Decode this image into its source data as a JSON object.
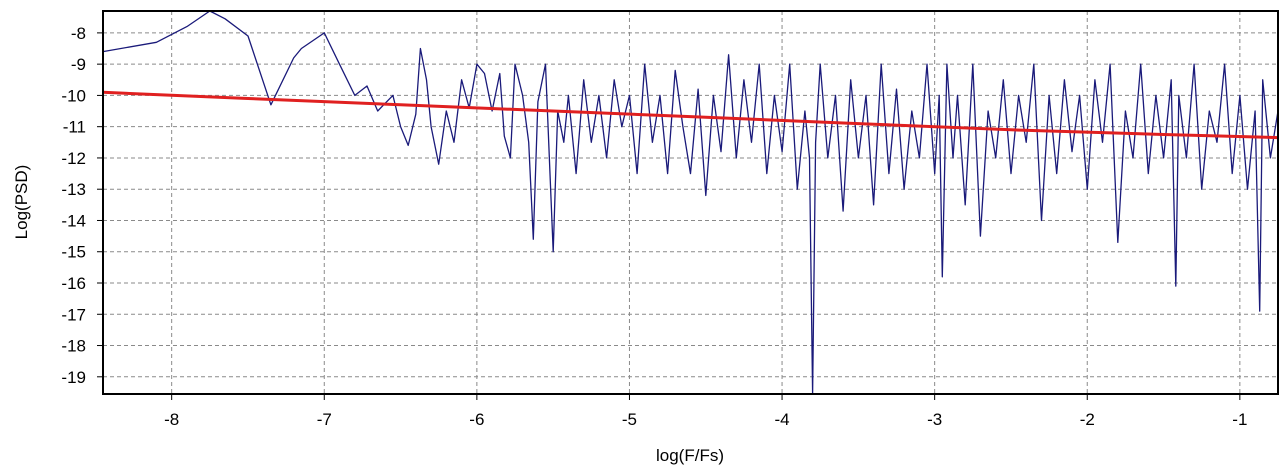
{
  "chart_data": {
    "type": "line",
    "title": "",
    "xlabel": "log(F/Fs)",
    "ylabel": "Log(PSD)",
    "xlim": [
      -8.45,
      -0.75
    ],
    "ylim": [
      -19.55,
      -7.3
    ],
    "xticks": [
      -8,
      -7,
      -6,
      -5,
      -4,
      -3,
      -2,
      -1
    ],
    "yticks": [
      -8,
      -9,
      -10,
      -11,
      -12,
      -13,
      -14,
      -15,
      -16,
      -17,
      -18,
      -19
    ],
    "grid": true,
    "legend": "none",
    "series": [
      {
        "color": "#1a1a7a",
        "points": [
          [
            -8.45,
            -8.6
          ],
          [
            -8.1,
            -8.3
          ],
          [
            -7.9,
            -7.8
          ],
          [
            -7.75,
            -7.3
          ],
          [
            -7.65,
            -7.55
          ],
          [
            -7.5,
            -8.1
          ],
          [
            -7.35,
            -10.3
          ],
          [
            -7.2,
            -8.8
          ],
          [
            -7.15,
            -8.5
          ],
          [
            -7.0,
            -8.0
          ],
          [
            -6.9,
            -9.0
          ],
          [
            -6.8,
            -10.0
          ],
          [
            -6.72,
            -9.7
          ],
          [
            -6.65,
            -10.5
          ],
          [
            -6.55,
            -10.0
          ],
          [
            -6.5,
            -11.0
          ],
          [
            -6.45,
            -11.6
          ],
          [
            -6.4,
            -10.6
          ],
          [
            -6.37,
            -8.5
          ],
          [
            -6.33,
            -9.5
          ],
          [
            -6.3,
            -11.0
          ],
          [
            -6.25,
            -12.2
          ],
          [
            -6.2,
            -10.5
          ],
          [
            -6.15,
            -11.5
          ],
          [
            -6.1,
            -9.5
          ],
          [
            -6.05,
            -10.4
          ],
          [
            -6.0,
            -9.0
          ],
          [
            -5.95,
            -9.3
          ],
          [
            -5.9,
            -10.5
          ],
          [
            -5.85,
            -9.3
          ],
          [
            -5.82,
            -11.3
          ],
          [
            -5.78,
            -12.0
          ],
          [
            -5.75,
            -9.0
          ],
          [
            -5.7,
            -10.0
          ],
          [
            -5.66,
            -11.5
          ],
          [
            -5.63,
            -14.6
          ],
          [
            -5.6,
            -10.2
          ],
          [
            -5.55,
            -9.0
          ],
          [
            -5.5,
            -15.0
          ],
          [
            -5.47,
            -10.5
          ],
          [
            -5.43,
            -11.5
          ],
          [
            -5.4,
            -10.0
          ],
          [
            -5.35,
            -12.5
          ],
          [
            -5.3,
            -9.5
          ],
          [
            -5.25,
            -11.5
          ],
          [
            -5.2,
            -10.0
          ],
          [
            -5.15,
            -12.0
          ],
          [
            -5.1,
            -9.5
          ],
          [
            -5.05,
            -11.0
          ],
          [
            -5.0,
            -10.0
          ],
          [
            -4.95,
            -12.5
          ],
          [
            -4.9,
            -9.0
          ],
          [
            -4.85,
            -11.5
          ],
          [
            -4.8,
            -10.0
          ],
          [
            -4.75,
            -12.5
          ],
          [
            -4.7,
            -9.2
          ],
          [
            -4.65,
            -11.0
          ],
          [
            -4.6,
            -12.5
          ],
          [
            -4.55,
            -9.8
          ],
          [
            -4.5,
            -13.2
          ],
          [
            -4.45,
            -10.0
          ],
          [
            -4.4,
            -11.8
          ],
          [
            -4.35,
            -8.7
          ],
          [
            -4.3,
            -12.0
          ],
          [
            -4.25,
            -9.5
          ],
          [
            -4.2,
            -11.5
          ],
          [
            -4.15,
            -9.0
          ],
          [
            -4.1,
            -12.5
          ],
          [
            -4.05,
            -10.0
          ],
          [
            -4.0,
            -11.8
          ],
          [
            -3.95,
            -9.0
          ],
          [
            -3.9,
            -13.0
          ],
          [
            -3.85,
            -10.5
          ],
          [
            -3.82,
            -12.0
          ],
          [
            -3.8,
            -19.55
          ],
          [
            -3.78,
            -11.5
          ],
          [
            -3.75,
            -9.0
          ],
          [
            -3.7,
            -12.0
          ],
          [
            -3.65,
            -10.0
          ],
          [
            -3.6,
            -13.7
          ],
          [
            -3.55,
            -9.5
          ],
          [
            -3.5,
            -12.0
          ],
          [
            -3.45,
            -10.0
          ],
          [
            -3.4,
            -13.5
          ],
          [
            -3.35,
            -9.0
          ],
          [
            -3.3,
            -12.5
          ],
          [
            -3.25,
            -9.8
          ],
          [
            -3.2,
            -13.0
          ],
          [
            -3.15,
            -10.5
          ],
          [
            -3.1,
            -12.0
          ],
          [
            -3.05,
            -9.0
          ],
          [
            -3.0,
            -12.5
          ],
          [
            -2.97,
            -10.0
          ],
          [
            -2.95,
            -15.8
          ],
          [
            -2.92,
            -9.0
          ],
          [
            -2.88,
            -12.0
          ],
          [
            -2.85,
            -10.0
          ],
          [
            -2.8,
            -13.5
          ],
          [
            -2.75,
            -9.0
          ],
          [
            -2.7,
            -14.5
          ],
          [
            -2.65,
            -10.5
          ],
          [
            -2.6,
            -12.0
          ],
          [
            -2.55,
            -9.5
          ],
          [
            -2.5,
            -12.5
          ],
          [
            -2.45,
            -10.0
          ],
          [
            -2.4,
            -11.5
          ],
          [
            -2.35,
            -9.0
          ],
          [
            -2.3,
            -14.0
          ],
          [
            -2.25,
            -10.0
          ],
          [
            -2.2,
            -12.5
          ],
          [
            -2.15,
            -9.5
          ],
          [
            -2.1,
            -11.8
          ],
          [
            -2.05,
            -10.0
          ],
          [
            -2.0,
            -13.0
          ],
          [
            -1.95,
            -9.5
          ],
          [
            -1.9,
            -11.5
          ],
          [
            -1.85,
            -9.0
          ],
          [
            -1.8,
            -14.7
          ],
          [
            -1.75,
            -10.5
          ],
          [
            -1.7,
            -12.0
          ],
          [
            -1.65,
            -9.0
          ],
          [
            -1.6,
            -12.5
          ],
          [
            -1.55,
            -10.0
          ],
          [
            -1.5,
            -12.0
          ],
          [
            -1.45,
            -9.5
          ],
          [
            -1.42,
            -16.1
          ],
          [
            -1.4,
            -10.0
          ],
          [
            -1.35,
            -12.0
          ],
          [
            -1.3,
            -9.0
          ],
          [
            -1.25,
            -13.0
          ],
          [
            -1.2,
            -10.5
          ],
          [
            -1.15,
            -11.5
          ],
          [
            -1.1,
            -9.0
          ],
          [
            -1.05,
            -12.5
          ],
          [
            -1.0,
            -10.0
          ],
          [
            -0.95,
            -13.0
          ],
          [
            -0.9,
            -10.5
          ],
          [
            -0.87,
            -16.9
          ],
          [
            -0.85,
            -9.5
          ],
          [
            -0.8,
            -12.0
          ],
          [
            -0.75,
            -10.5
          ]
        ]
      },
      {
        "color": "#e02020",
        "points": [
          [
            -8.45,
            -9.9
          ],
          [
            -7.5,
            -10.1
          ],
          [
            -6.5,
            -10.3
          ],
          [
            -5.5,
            -10.5
          ],
          [
            -4.5,
            -10.7
          ],
          [
            -3.5,
            -10.9
          ],
          [
            -2.5,
            -11.1
          ],
          [
            -1.5,
            -11.25
          ],
          [
            -0.75,
            -11.35
          ]
        ]
      }
    ]
  }
}
